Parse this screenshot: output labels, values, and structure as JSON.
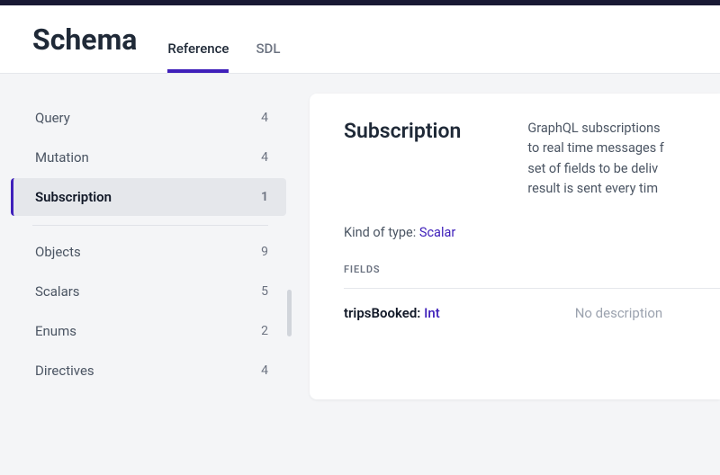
{
  "header": {
    "title": "Schema",
    "tabs": [
      {
        "label": "Reference",
        "active": true
      },
      {
        "label": "SDL",
        "active": false
      }
    ]
  },
  "sidebar": {
    "groups": [
      [
        {
          "label": "Query",
          "count": "4",
          "active": false
        },
        {
          "label": "Mutation",
          "count": "4",
          "active": false
        },
        {
          "label": "Subscription",
          "count": "1",
          "active": true
        }
      ],
      [
        {
          "label": "Objects",
          "count": "9",
          "active": false
        },
        {
          "label": "Scalars",
          "count": "5",
          "active": false
        },
        {
          "label": "Enums",
          "count": "2",
          "active": false
        },
        {
          "label": "Directives",
          "count": "4",
          "active": false
        }
      ]
    ]
  },
  "detail": {
    "title": "Subscription",
    "description": "GraphQL subscriptions\nto real time messages f\nset of fields to be deliv\nresult is sent every tim",
    "kindLabel": "Kind of type: ",
    "kindValue": "Scalar",
    "fieldsHeading": "FIELDS",
    "fields": [
      {
        "name": "tripsBooked:",
        "type": "Int",
        "desc": "No description"
      }
    ]
  },
  "colors": {
    "accent": "#3f20ba",
    "pageBg": "#f4f5f7",
    "panelBg": "#ffffff",
    "textPrimary": "#1f2937",
    "textMuted": "#6b7280"
  }
}
